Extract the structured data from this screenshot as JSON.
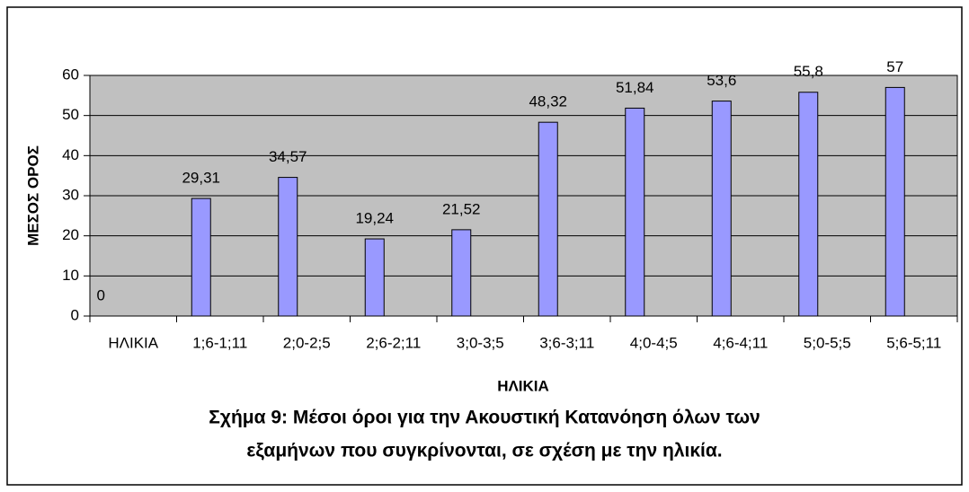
{
  "chart_data": {
    "type": "bar",
    "y_axis_label": "ΜΕΣΟΣ ΟΡΟΣ",
    "x_axis_label": "ΗΛΙΚΙΑ",
    "caption": [
      "Σχήμα 9: Μέσοι όροι για την Ακουστική Κατανόηση όλων των",
      "εξαμήνων που συγκρίνονται, σε σχέση με την ηλικία."
    ],
    "categories": [
      "ΗΛΙΚΙΑ",
      "1;6-1;11",
      "2;0-2;5",
      "2;6-2;11",
      "3;0-3;5",
      "3;6-3;11",
      "4;0-4;5",
      "4;6-4;11",
      "5;0-5;5",
      "5;6-5;11"
    ],
    "values": [
      0,
      29.31,
      34.57,
      19.24,
      21.52,
      48.32,
      51.84,
      53.6,
      55.8,
      57
    ],
    "value_labels": [
      "0",
      "29,31",
      "34,57",
      "19,24",
      "21,52",
      "48,32",
      "51,84",
      "53,6",
      "55,8",
      "57"
    ],
    "color": "#9999ff",
    "plot_background": "#c0c0c0",
    "ylim": [
      0,
      60
    ],
    "yticks": [
      0,
      10,
      20,
      30,
      40,
      50,
      60
    ],
    "grid": true
  }
}
